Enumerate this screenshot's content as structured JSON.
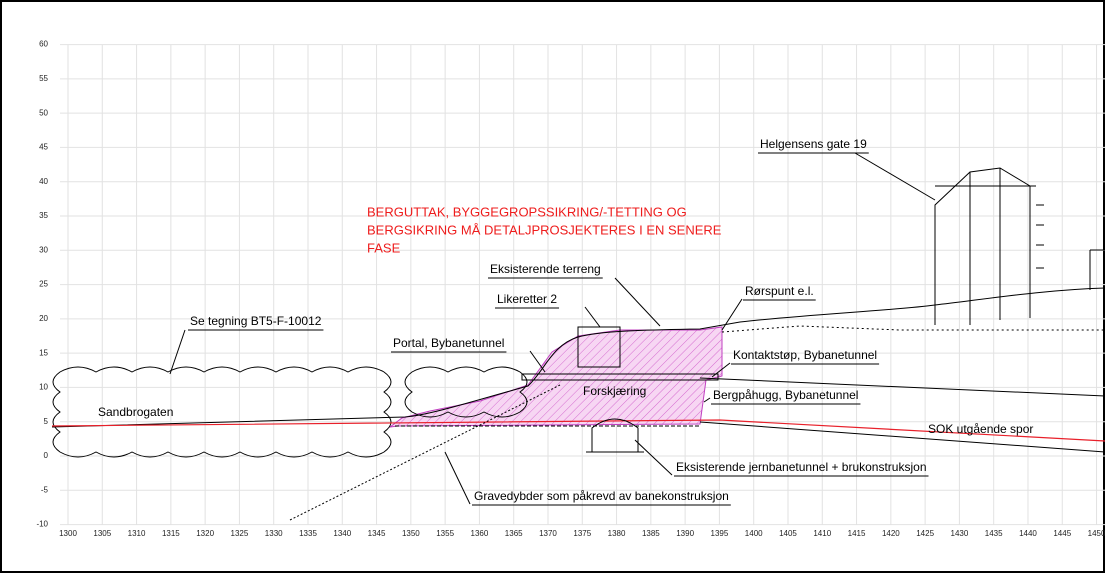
{
  "axes": {
    "yticks": [
      60,
      55,
      50,
      45,
      40,
      35,
      30,
      25,
      20,
      15,
      10,
      5,
      0,
      -5,
      -10
    ],
    "xticks": [
      1300,
      1305,
      1310,
      1315,
      1320,
      1325,
      1330,
      1335,
      1340,
      1345,
      1350,
      1355,
      1360,
      1365,
      1370,
      1375,
      1380,
      1385,
      1390,
      1395,
      1400,
      1405,
      1410,
      1415,
      1420,
      1425,
      1430,
      1435,
      1440,
      1445,
      1450
    ]
  },
  "note": [
    "BERGUTTAK, BYGGEGROPSSIKRING/-TETTING OG",
    "BERGSIKRING MÅ DETALJPROSJEKTERES I EN SENERE",
    "FASE"
  ],
  "labels": [
    "Helgensens gate 19",
    "Eksisterende terreng",
    "Likeretter 2",
    "Rørspunt e.l.",
    "Se tegning BT5-F-10012",
    "Portal, Bybanetunnel",
    "Kontaktstøp, Bybanetunnel",
    "Forskjæring",
    "Bergpåhugg, Bybanetunnel",
    "Sandbrogaten",
    "SOK utgående spor",
    "Eksisterende jernbanetunnel + brukonstruksjon",
    "Gravedybder som påkrevd av banekonstruksjon"
  ]
}
